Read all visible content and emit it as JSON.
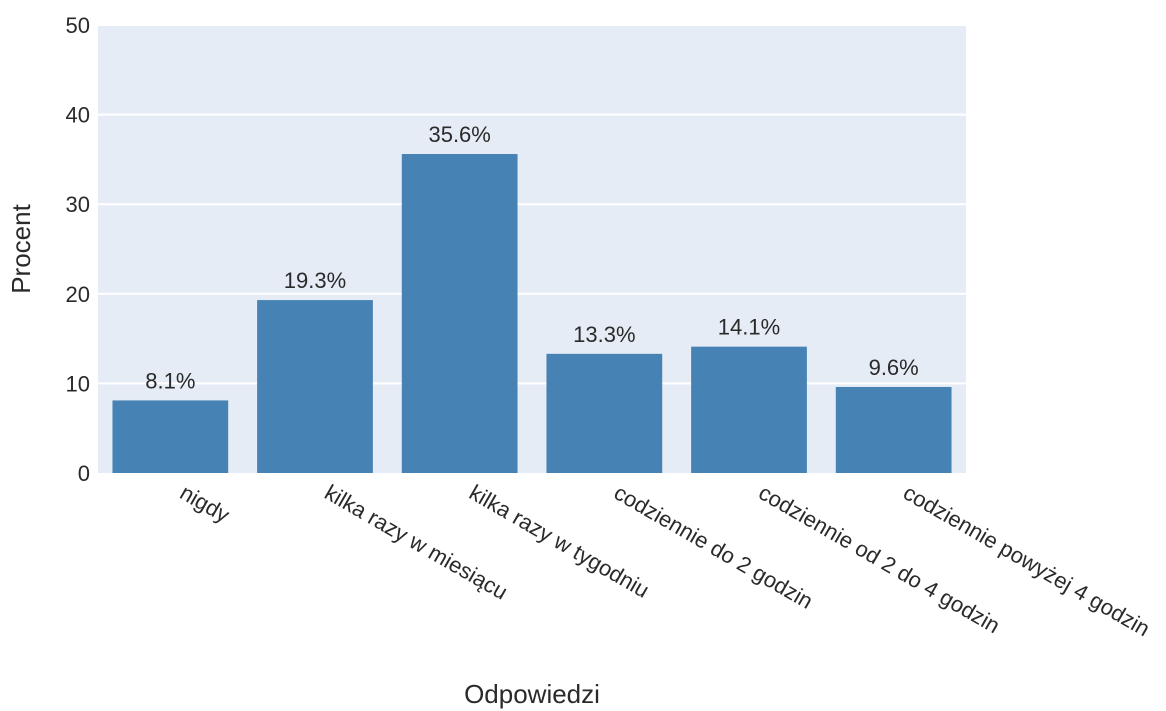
{
  "chart_data": {
    "type": "bar",
    "categories": [
      "nigdy",
      "kilka razy w miesiącu",
      "kilka razy w tygodniu",
      "codziennie do 2 godzin",
      "codziennie od 2 do 4 godzin",
      "codziennie powyżej 4 godzin"
    ],
    "values": [
      8.1,
      19.3,
      35.6,
      13.3,
      14.1,
      9.6
    ],
    "value_labels": [
      "8.1%",
      "19.3%",
      "35.6%",
      "13.3%",
      "14.1%",
      "9.6%"
    ],
    "xlabel": "Odpowiedzi",
    "ylabel": "Procent",
    "ylim": [
      0,
      50
    ],
    "yticks": [
      0,
      10,
      20,
      30,
      40,
      50
    ],
    "ytick_labels": [
      "0",
      "10",
      "20",
      "30",
      "40",
      "50"
    ],
    "grid": true,
    "legend": "none",
    "colors": {
      "bar": "#4682b4",
      "plot_background": "#e5ecf6",
      "grid": "#ffffff",
      "text": "#2a2a2a"
    }
  }
}
